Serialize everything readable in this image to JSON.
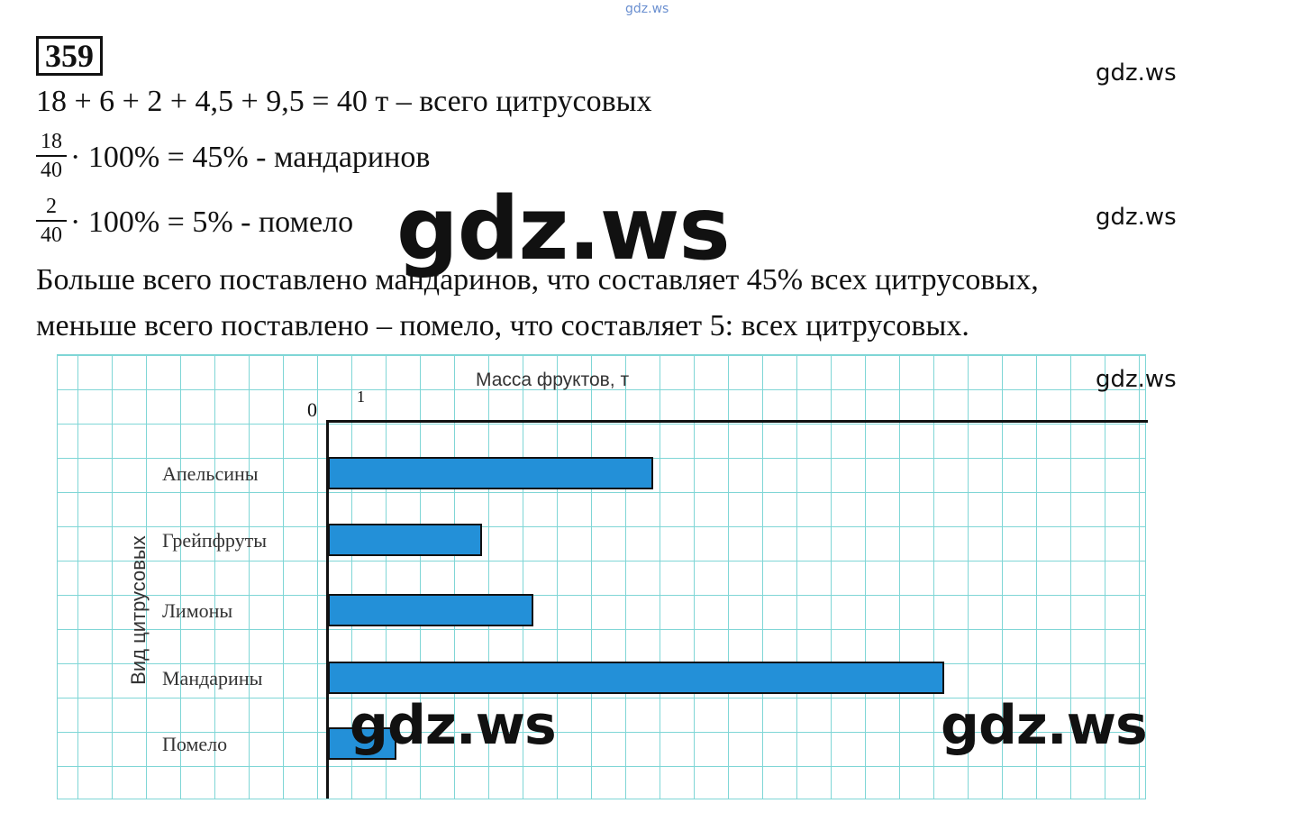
{
  "watermarks": {
    "top": "gdz.ws",
    "side": "gdz.ws",
    "big": "gdz.ws"
  },
  "problem_number": "359",
  "lines": {
    "sum": "18 + 6 + 2 + 4,5 + 9,5 = 40 т – всего цитрусовых",
    "f1_num": "18",
    "f1_den": "40",
    "f1_rest": "· 100% = 45% - мандаринов",
    "f2_num": "2",
    "f2_den": "40",
    "f2_rest": "· 100% = 5% - помело",
    "conclusion1": "Больше всего поставлено мандаринов, что составляет 45% всех цитрусовых,",
    "conclusion2": "меньше всего поставлено – помело, что составляет 5: всех цитрусовых."
  },
  "chart_data": {
    "type": "bar",
    "orientation": "horizontal",
    "title": "Масса фруктов, т",
    "ylabel": "Вид цитрусовых",
    "x_ticks": [
      "0",
      "1"
    ],
    "categories": [
      "Апельсины",
      "Грейпфруты",
      "Лимоны",
      "Мандарины",
      "Помело"
    ],
    "values": [
      9.5,
      4.5,
      6,
      18,
      2
    ],
    "bar_color": "#2390d8",
    "grid": true
  }
}
